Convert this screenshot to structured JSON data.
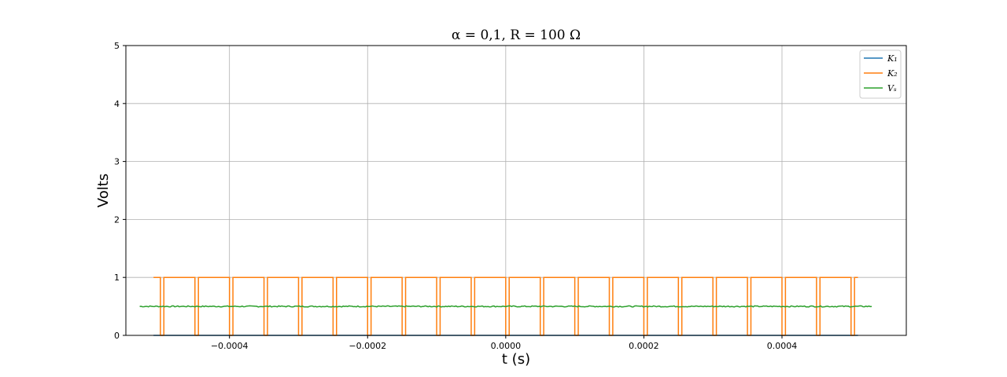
{
  "chart_data": {
    "type": "line",
    "title": "α = 0,1,  R = 100 Ω",
    "xlabel": "t (s)",
    "ylabel": "Volts",
    "xlim": [
      -0.00055,
      0.00058
    ],
    "ylim": [
      0,
      5
    ],
    "xticks": [
      -0.0004,
      -0.0002,
      0.0,
      0.0002,
      0.0004
    ],
    "xtick_labels": [
      "−0.0004",
      "−0.0002",
      "0.0000",
      "0.0002",
      "0.0004"
    ],
    "yticks": [
      0,
      1,
      2,
      3,
      4,
      5
    ],
    "ytick_labels": [
      "0",
      "1",
      "2",
      "3",
      "4",
      "5"
    ],
    "grid": true,
    "legend_position": "top-right",
    "series": [
      {
        "name": "K₁",
        "color": "#1f77b4",
        "kind": "constant",
        "x_range": [
          -0.00051,
          0.00051
        ],
        "value": 0
      },
      {
        "name": "K₂",
        "color": "#ff7f0e",
        "kind": "pulse-train",
        "x_range": [
          -0.00051,
          0.00051
        ],
        "high": 1,
        "low": 0,
        "period": 5e-05,
        "duty": 0.9,
        "first_rise": -0.000495
      },
      {
        "name": "Vₛ",
        "color": "#2ca02c",
        "kind": "noisy-constant",
        "x_range": [
          -0.00053,
          0.00053
        ],
        "value": 0.5,
        "noise": 0.01
      }
    ]
  }
}
